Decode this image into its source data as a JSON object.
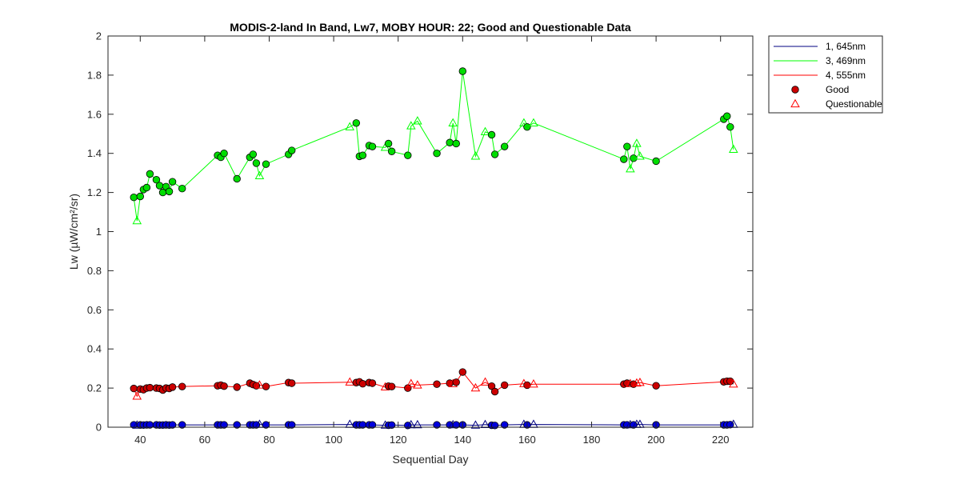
{
  "chart_data": {
    "type": "line",
    "title": "MODIS-2-land In Band,  Lw7, MOBY HOUR: 22;  Good and Questionable Data",
    "xlabel": "Sequential Day",
    "ylabel": "Lw (µW/cm²/sr)",
    "xlim": [
      30,
      230
    ],
    "ylim": [
      0,
      2
    ],
    "xticks": [
      40,
      60,
      80,
      100,
      120,
      140,
      160,
      180,
      200,
      220
    ],
    "yticks": [
      0,
      0.2,
      0.4,
      0.6,
      0.8,
      1,
      1.2,
      1.4,
      1.6,
      1.8,
      2
    ],
    "xtick_labels": [
      "40",
      "60",
      "80",
      "100",
      "120",
      "140",
      "160",
      "180",
      "200",
      "220"
    ],
    "ytick_labels": [
      "0",
      "0.2",
      "0.4",
      "0.6",
      "0.8",
      "1",
      "1.2",
      "1.4",
      "1.6",
      "1.8",
      "2"
    ],
    "grid": false,
    "legend_position": "outside-top-right",
    "legend": {
      "entries": [
        {
          "label": "1, 645nm",
          "kind": "line",
          "color": "#000080"
        },
        {
          "label": "3, 469nm",
          "kind": "line",
          "color": "#00ff00"
        },
        {
          "label": "4, 555nm",
          "kind": "line",
          "color": "#ff0000"
        },
        {
          "label": "Good",
          "kind": "filled-circle",
          "color": "#cc0000"
        },
        {
          "label": "Questionable",
          "kind": "open-triangle",
          "color": "#ff0000"
        }
      ]
    },
    "series": [
      {
        "name": "3, 469nm",
        "line_color": "#00ff00",
        "marker_fill": "#00dd00",
        "points": [
          {
            "x": 38,
            "y": 1.175,
            "q": "good"
          },
          {
            "x": 39,
            "y": 1.055,
            "q": "questionable"
          },
          {
            "x": 40,
            "y": 1.18,
            "q": "good"
          },
          {
            "x": 41,
            "y": 1.215,
            "q": "good"
          },
          {
            "x": 42,
            "y": 1.225,
            "q": "good"
          },
          {
            "x": 43,
            "y": 1.295,
            "q": "good"
          },
          {
            "x": 45,
            "y": 1.265,
            "q": "good"
          },
          {
            "x": 46,
            "y": 1.235,
            "q": "good"
          },
          {
            "x": 47,
            "y": 1.2,
            "q": "good"
          },
          {
            "x": 48,
            "y": 1.23,
            "q": "good"
          },
          {
            "x": 49,
            "y": 1.205,
            "q": "good"
          },
          {
            "x": 50,
            "y": 1.255,
            "q": "good"
          },
          {
            "x": 53,
            "y": 1.22,
            "q": "good"
          },
          {
            "x": 64,
            "y": 1.39,
            "q": "good"
          },
          {
            "x": 65,
            "y": 1.38,
            "q": "good"
          },
          {
            "x": 66,
            "y": 1.4,
            "q": "good"
          },
          {
            "x": 70,
            "y": 1.27,
            "q": "good"
          },
          {
            "x": 74,
            "y": 1.38,
            "q": "good"
          },
          {
            "x": 75,
            "y": 1.395,
            "q": "good"
          },
          {
            "x": 76,
            "y": 1.35,
            "q": "good"
          },
          {
            "x": 77,
            "y": 1.285,
            "q": "questionable"
          },
          {
            "x": 79,
            "y": 1.345,
            "q": "good"
          },
          {
            "x": 86,
            "y": 1.395,
            "q": "good"
          },
          {
            "x": 87,
            "y": 1.415,
            "q": "good"
          },
          {
            "x": 105,
            "y": 1.535,
            "q": "questionable"
          },
          {
            "x": 107,
            "y": 1.555,
            "q": "good"
          },
          {
            "x": 108,
            "y": 1.385,
            "q": "good"
          },
          {
            "x": 109,
            "y": 1.39,
            "q": "good"
          },
          {
            "x": 111,
            "y": 1.44,
            "q": "good"
          },
          {
            "x": 112,
            "y": 1.435,
            "q": "good"
          },
          {
            "x": 116,
            "y": 1.43,
            "q": "questionable"
          },
          {
            "x": 117,
            "y": 1.45,
            "q": "good"
          },
          {
            "x": 118,
            "y": 1.41,
            "q": "good"
          },
          {
            "x": 123,
            "y": 1.39,
            "q": "good"
          },
          {
            "x": 124,
            "y": 1.54,
            "q": "questionable"
          },
          {
            "x": 126,
            "y": 1.565,
            "q": "questionable"
          },
          {
            "x": 132,
            "y": 1.4,
            "q": "good"
          },
          {
            "x": 136,
            "y": 1.455,
            "q": "good"
          },
          {
            "x": 137,
            "y": 1.555,
            "q": "questionable"
          },
          {
            "x": 138,
            "y": 1.45,
            "q": "good"
          },
          {
            "x": 140,
            "y": 1.82,
            "q": "good"
          },
          {
            "x": 144,
            "y": 1.385,
            "q": "questionable"
          },
          {
            "x": 147,
            "y": 1.51,
            "q": "questionable"
          },
          {
            "x": 149,
            "y": 1.495,
            "q": "good"
          },
          {
            "x": 150,
            "y": 1.395,
            "q": "good"
          },
          {
            "x": 153,
            "y": 1.435,
            "q": "good"
          },
          {
            "x": 159,
            "y": 1.555,
            "q": "questionable"
          },
          {
            "x": 160,
            "y": 1.535,
            "q": "good"
          },
          {
            "x": 162,
            "y": 1.555,
            "q": "questionable"
          },
          {
            "x": 190,
            "y": 1.37,
            "q": "good"
          },
          {
            "x": 191,
            "y": 1.435,
            "q": "good"
          },
          {
            "x": 192,
            "y": 1.32,
            "q": "questionable"
          },
          {
            "x": 193,
            "y": 1.375,
            "q": "good"
          },
          {
            "x": 194,
            "y": 1.45,
            "q": "questionable"
          },
          {
            "x": 195,
            "y": 1.385,
            "q": "questionable"
          },
          {
            "x": 200,
            "y": 1.36,
            "q": "good"
          },
          {
            "x": 221,
            "y": 1.575,
            "q": "good"
          },
          {
            "x": 222,
            "y": 1.59,
            "q": "good"
          },
          {
            "x": 223,
            "y": 1.535,
            "q": "good"
          },
          {
            "x": 224,
            "y": 1.42,
            "q": "questionable"
          }
        ]
      },
      {
        "name": "4, 555nm",
        "line_color": "#ff0000",
        "marker_fill": "#cc0000",
        "points": [
          {
            "x": 38,
            "y": 0.198,
            "q": "good"
          },
          {
            "x": 39,
            "y": 0.158,
            "q": "questionable"
          },
          {
            "x": 40,
            "y": 0.195,
            "q": "good"
          },
          {
            "x": 41,
            "y": 0.192,
            "q": "good"
          },
          {
            "x": 42,
            "y": 0.2,
            "q": "good"
          },
          {
            "x": 43,
            "y": 0.202,
            "q": "good"
          },
          {
            "x": 45,
            "y": 0.2,
            "q": "good"
          },
          {
            "x": 46,
            "y": 0.198,
            "q": "good"
          },
          {
            "x": 47,
            "y": 0.19,
            "q": "good"
          },
          {
            "x": 48,
            "y": 0.2,
            "q": "good"
          },
          {
            "x": 49,
            "y": 0.198,
            "q": "good"
          },
          {
            "x": 50,
            "y": 0.205,
            "q": "good"
          },
          {
            "x": 53,
            "y": 0.208,
            "q": "good"
          },
          {
            "x": 64,
            "y": 0.212,
            "q": "good"
          },
          {
            "x": 65,
            "y": 0.215,
            "q": "good"
          },
          {
            "x": 66,
            "y": 0.21,
            "q": "good"
          },
          {
            "x": 70,
            "y": 0.205,
            "q": "good"
          },
          {
            "x": 74,
            "y": 0.225,
            "q": "good"
          },
          {
            "x": 75,
            "y": 0.218,
            "q": "good"
          },
          {
            "x": 76,
            "y": 0.212,
            "q": "good"
          },
          {
            "x": 77,
            "y": 0.215,
            "q": "questionable"
          },
          {
            "x": 79,
            "y": 0.208,
            "q": "good"
          },
          {
            "x": 86,
            "y": 0.228,
            "q": "good"
          },
          {
            "x": 87,
            "y": 0.225,
            "q": "good"
          },
          {
            "x": 105,
            "y": 0.23,
            "q": "questionable"
          },
          {
            "x": 107,
            "y": 0.228,
            "q": "good"
          },
          {
            "x": 108,
            "y": 0.232,
            "q": "good"
          },
          {
            "x": 109,
            "y": 0.222,
            "q": "good"
          },
          {
            "x": 111,
            "y": 0.228,
            "q": "good"
          },
          {
            "x": 112,
            "y": 0.225,
            "q": "good"
          },
          {
            "x": 116,
            "y": 0.205,
            "q": "questionable"
          },
          {
            "x": 117,
            "y": 0.21,
            "q": "good"
          },
          {
            "x": 118,
            "y": 0.208,
            "q": "good"
          },
          {
            "x": 123,
            "y": 0.2,
            "q": "good"
          },
          {
            "x": 124,
            "y": 0.222,
            "q": "questionable"
          },
          {
            "x": 126,
            "y": 0.215,
            "q": "questionable"
          },
          {
            "x": 132,
            "y": 0.22,
            "q": "good"
          },
          {
            "x": 136,
            "y": 0.225,
            "q": "good"
          },
          {
            "x": 137,
            "y": 0.222,
            "q": "questionable"
          },
          {
            "x": 138,
            "y": 0.23,
            "q": "good"
          },
          {
            "x": 140,
            "y": 0.282,
            "q": "good"
          },
          {
            "x": 144,
            "y": 0.2,
            "q": "questionable"
          },
          {
            "x": 147,
            "y": 0.23,
            "q": "questionable"
          },
          {
            "x": 149,
            "y": 0.21,
            "q": "good"
          },
          {
            "x": 150,
            "y": 0.182,
            "q": "good"
          },
          {
            "x": 153,
            "y": 0.215,
            "q": "good"
          },
          {
            "x": 159,
            "y": 0.222,
            "q": "questionable"
          },
          {
            "x": 160,
            "y": 0.215,
            "q": "good"
          },
          {
            "x": 162,
            "y": 0.22,
            "q": "questionable"
          },
          {
            "x": 190,
            "y": 0.22,
            "q": "good"
          },
          {
            "x": 191,
            "y": 0.225,
            "q": "good"
          },
          {
            "x": 192,
            "y": 0.222,
            "q": "questionable"
          },
          {
            "x": 193,
            "y": 0.22,
            "q": "good"
          },
          {
            "x": 194,
            "y": 0.225,
            "q": "questionable"
          },
          {
            "x": 195,
            "y": 0.228,
            "q": "questionable"
          },
          {
            "x": 200,
            "y": 0.212,
            "q": "good"
          },
          {
            "x": 221,
            "y": 0.232,
            "q": "good"
          },
          {
            "x": 222,
            "y": 0.235,
            "q": "good"
          },
          {
            "x": 223,
            "y": 0.235,
            "q": "good"
          },
          {
            "x": 224,
            "y": 0.22,
            "q": "questionable"
          }
        ]
      },
      {
        "name": "1, 645nm",
        "line_color": "#000080",
        "marker_fill": "#0000dd",
        "points": [
          {
            "x": 38,
            "y": 0.012,
            "q": "good"
          },
          {
            "x": 39,
            "y": 0.01,
            "q": "questionable"
          },
          {
            "x": 40,
            "y": 0.012,
            "q": "good"
          },
          {
            "x": 41,
            "y": 0.011,
            "q": "good"
          },
          {
            "x": 42,
            "y": 0.012,
            "q": "good"
          },
          {
            "x": 43,
            "y": 0.012,
            "q": "good"
          },
          {
            "x": 45,
            "y": 0.012,
            "q": "good"
          },
          {
            "x": 46,
            "y": 0.011,
            "q": "good"
          },
          {
            "x": 47,
            "y": 0.011,
            "q": "good"
          },
          {
            "x": 48,
            "y": 0.012,
            "q": "good"
          },
          {
            "x": 49,
            "y": 0.011,
            "q": "good"
          },
          {
            "x": 50,
            "y": 0.012,
            "q": "good"
          },
          {
            "x": 53,
            "y": 0.012,
            "q": "good"
          },
          {
            "x": 64,
            "y": 0.012,
            "q": "good"
          },
          {
            "x": 65,
            "y": 0.012,
            "q": "good"
          },
          {
            "x": 66,
            "y": 0.012,
            "q": "good"
          },
          {
            "x": 70,
            "y": 0.012,
            "q": "good"
          },
          {
            "x": 74,
            "y": 0.012,
            "q": "good"
          },
          {
            "x": 75,
            "y": 0.012,
            "q": "good"
          },
          {
            "x": 76,
            "y": 0.012,
            "q": "good"
          },
          {
            "x": 77,
            "y": 0.014,
            "q": "questionable"
          },
          {
            "x": 79,
            "y": 0.012,
            "q": "good"
          },
          {
            "x": 86,
            "y": 0.012,
            "q": "good"
          },
          {
            "x": 87,
            "y": 0.012,
            "q": "good"
          },
          {
            "x": 105,
            "y": 0.014,
            "q": "questionable"
          },
          {
            "x": 107,
            "y": 0.012,
            "q": "good"
          },
          {
            "x": 108,
            "y": 0.012,
            "q": "good"
          },
          {
            "x": 109,
            "y": 0.012,
            "q": "good"
          },
          {
            "x": 111,
            "y": 0.012,
            "q": "good"
          },
          {
            "x": 112,
            "y": 0.012,
            "q": "good"
          },
          {
            "x": 116,
            "y": 0.01,
            "q": "questionable"
          },
          {
            "x": 117,
            "y": 0.01,
            "q": "good"
          },
          {
            "x": 118,
            "y": 0.011,
            "q": "good"
          },
          {
            "x": 123,
            "y": 0.009,
            "q": "good"
          },
          {
            "x": 124,
            "y": 0.012,
            "q": "questionable"
          },
          {
            "x": 126,
            "y": 0.012,
            "q": "questionable"
          },
          {
            "x": 132,
            "y": 0.012,
            "q": "good"
          },
          {
            "x": 136,
            "y": 0.012,
            "q": "good"
          },
          {
            "x": 137,
            "y": 0.012,
            "q": "questionable"
          },
          {
            "x": 138,
            "y": 0.012,
            "q": "good"
          },
          {
            "x": 140,
            "y": 0.012,
            "q": "good"
          },
          {
            "x": 144,
            "y": 0.01,
            "q": "questionable"
          },
          {
            "x": 147,
            "y": 0.013,
            "q": "questionable"
          },
          {
            "x": 149,
            "y": 0.01,
            "q": "good"
          },
          {
            "x": 150,
            "y": 0.009,
            "q": "good"
          },
          {
            "x": 153,
            "y": 0.012,
            "q": "good"
          },
          {
            "x": 159,
            "y": 0.014,
            "q": "questionable"
          },
          {
            "x": 160,
            "y": 0.012,
            "q": "good"
          },
          {
            "x": 162,
            "y": 0.014,
            "q": "questionable"
          },
          {
            "x": 190,
            "y": 0.012,
            "q": "good"
          },
          {
            "x": 191,
            "y": 0.012,
            "q": "good"
          },
          {
            "x": 192,
            "y": 0.012,
            "q": "questionable"
          },
          {
            "x": 193,
            "y": 0.012,
            "q": "good"
          },
          {
            "x": 194,
            "y": 0.014,
            "q": "questionable"
          },
          {
            "x": 195,
            "y": 0.014,
            "q": "questionable"
          },
          {
            "x": 200,
            "y": 0.012,
            "q": "good"
          },
          {
            "x": 221,
            "y": 0.012,
            "q": "good"
          },
          {
            "x": 222,
            "y": 0.012,
            "q": "good"
          },
          {
            "x": 223,
            "y": 0.013,
            "q": "good"
          },
          {
            "x": 224,
            "y": 0.014,
            "q": "questionable"
          }
        ]
      }
    ]
  }
}
